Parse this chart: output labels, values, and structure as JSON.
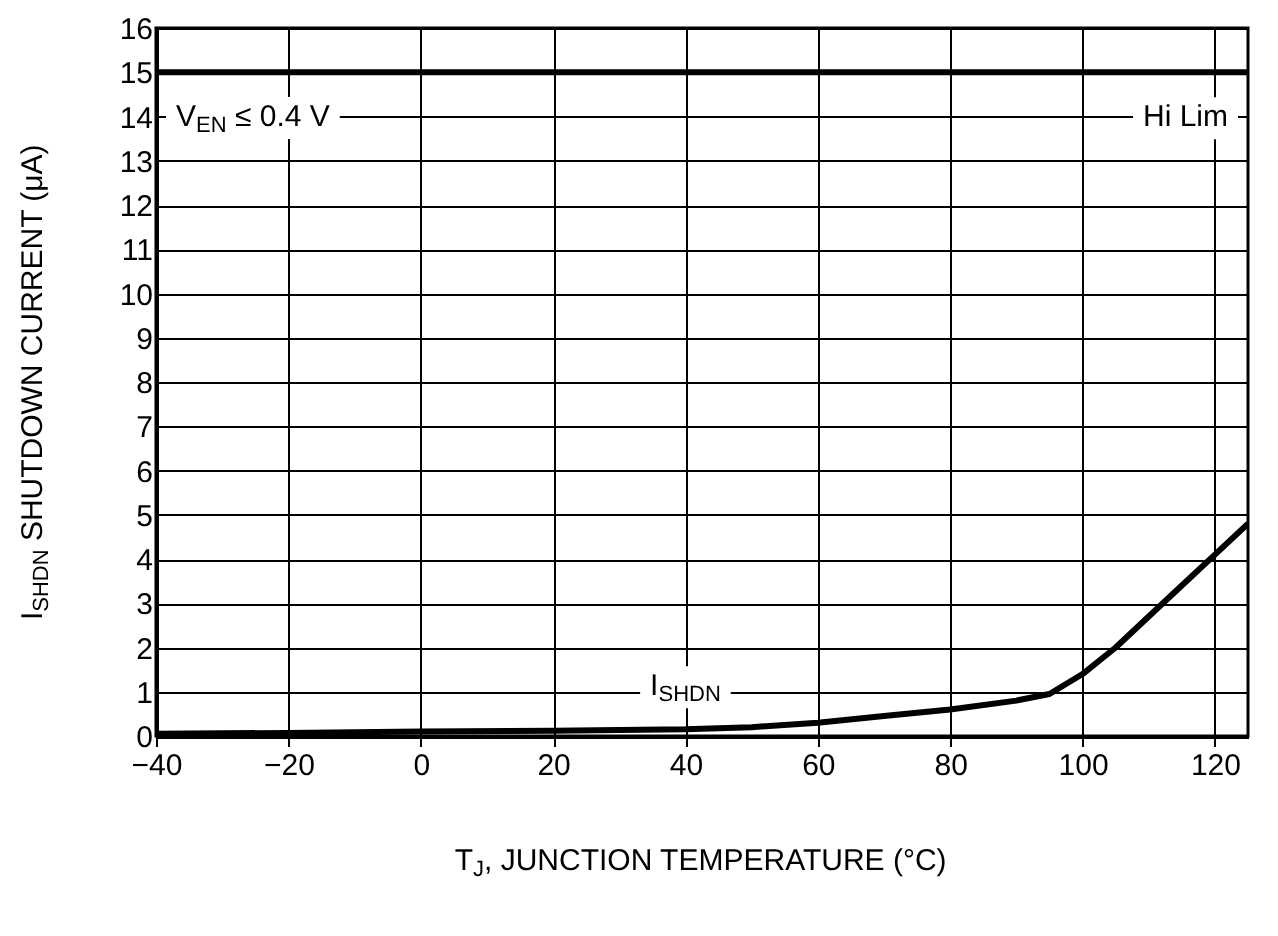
{
  "chart_data": {
    "type": "line",
    "xlabel": "T$_{J}$, JUNCTION TEMPERATURE (°C)",
    "ylabel": "I$_{SHDN}$ SHUTDOWN CURRENT (μA)",
    "x": [
      -40,
      -20,
      0,
      20,
      40,
      50,
      60,
      70,
      80,
      90,
      95,
      100,
      105,
      110,
      115,
      120,
      125
    ],
    "series": [
      {
        "name": "I$_{SHDN}$",
        "color": "#000000",
        "values": [
          0.05,
          0.07,
          0.1,
          0.12,
          0.15,
          0.2,
          0.3,
          0.45,
          0.6,
          0.8,
          0.95,
          1.4,
          2.0,
          2.7,
          3.4,
          4.1,
          4.8
        ]
      }
    ],
    "xlim": [
      -40,
      125
    ],
    "xticks": [
      -40,
      -20,
      0,
      20,
      40,
      60,
      80,
      100,
      120
    ],
    "ylim": [
      0,
      16
    ],
    "yticks": [
      0,
      1,
      2,
      3,
      4,
      5,
      6,
      7,
      8,
      9,
      10,
      11,
      12,
      13,
      14,
      15,
      16
    ],
    "ref_lines": [
      {
        "axis": "y",
        "value": 15,
        "label": "Hi Lim",
        "color": "#000000",
        "line_style": "solid"
      }
    ],
    "annotations": [
      "V$_{EN}$ ≤ 0.4 V"
    ],
    "grid": true,
    "legend": false,
    "marker": "none",
    "line_style": "solid"
  }
}
